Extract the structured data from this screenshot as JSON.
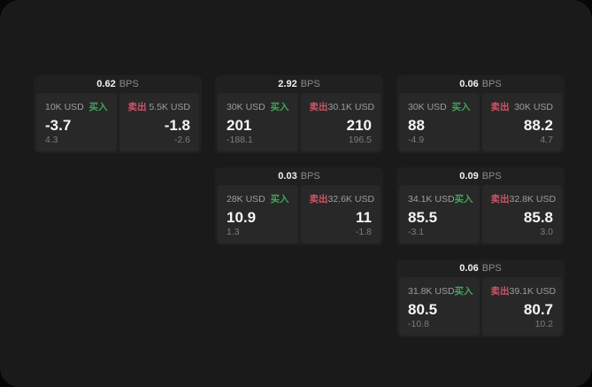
{
  "colors": {
    "background": "#060606",
    "panel": "#1a1a1a",
    "card": "#202020",
    "cell": "#282828",
    "text_primary": "#f5f5f5",
    "text_secondary": "#9d9d9d",
    "text_muted": "#7c7c7c",
    "buy_green": "#3fa65a",
    "sell_red": "#cf5468"
  },
  "labels": {
    "bps": "BPS",
    "buy": "买入",
    "sell": "卖出"
  },
  "cards": [
    {
      "bps": "0.62",
      "buy": {
        "amount": "10K USD",
        "value": "-3.7",
        "sub": "4.3"
      },
      "sell": {
        "amount": "5.5K USD",
        "value": "-1.8",
        "sub": "-2.6"
      }
    },
    {
      "bps": "2.92",
      "buy": {
        "amount": "30K USD",
        "value": "201",
        "sub": "-188.1"
      },
      "sell": {
        "amount": "30.1K USD",
        "value": "210",
        "sub": "196.5"
      }
    },
    {
      "bps": "0.06",
      "buy": {
        "amount": "30K USD",
        "value": "88",
        "sub": "-4.9"
      },
      "sell": {
        "amount": "30K USD",
        "value": "88.2",
        "sub": "4.7"
      }
    },
    {
      "bps": "0.03",
      "buy": {
        "amount": "28K USD",
        "value": "10.9",
        "sub": "1.3"
      },
      "sell": {
        "amount": "32.6K USD",
        "value": "11",
        "sub": "-1.8"
      }
    },
    {
      "bps": "0.09",
      "buy": {
        "amount": "34.1K USD",
        "value": "85.5",
        "sub": "-3.1"
      },
      "sell": {
        "amount": "32.8K USD",
        "value": "85.8",
        "sub": "3.0"
      }
    },
    {
      "bps": "0.06",
      "buy": {
        "amount": "31.8K USD",
        "value": "80.5",
        "sub": "-10.8"
      },
      "sell": {
        "amount": "39.1K USD",
        "value": "80.7",
        "sub": "10.2"
      }
    }
  ]
}
